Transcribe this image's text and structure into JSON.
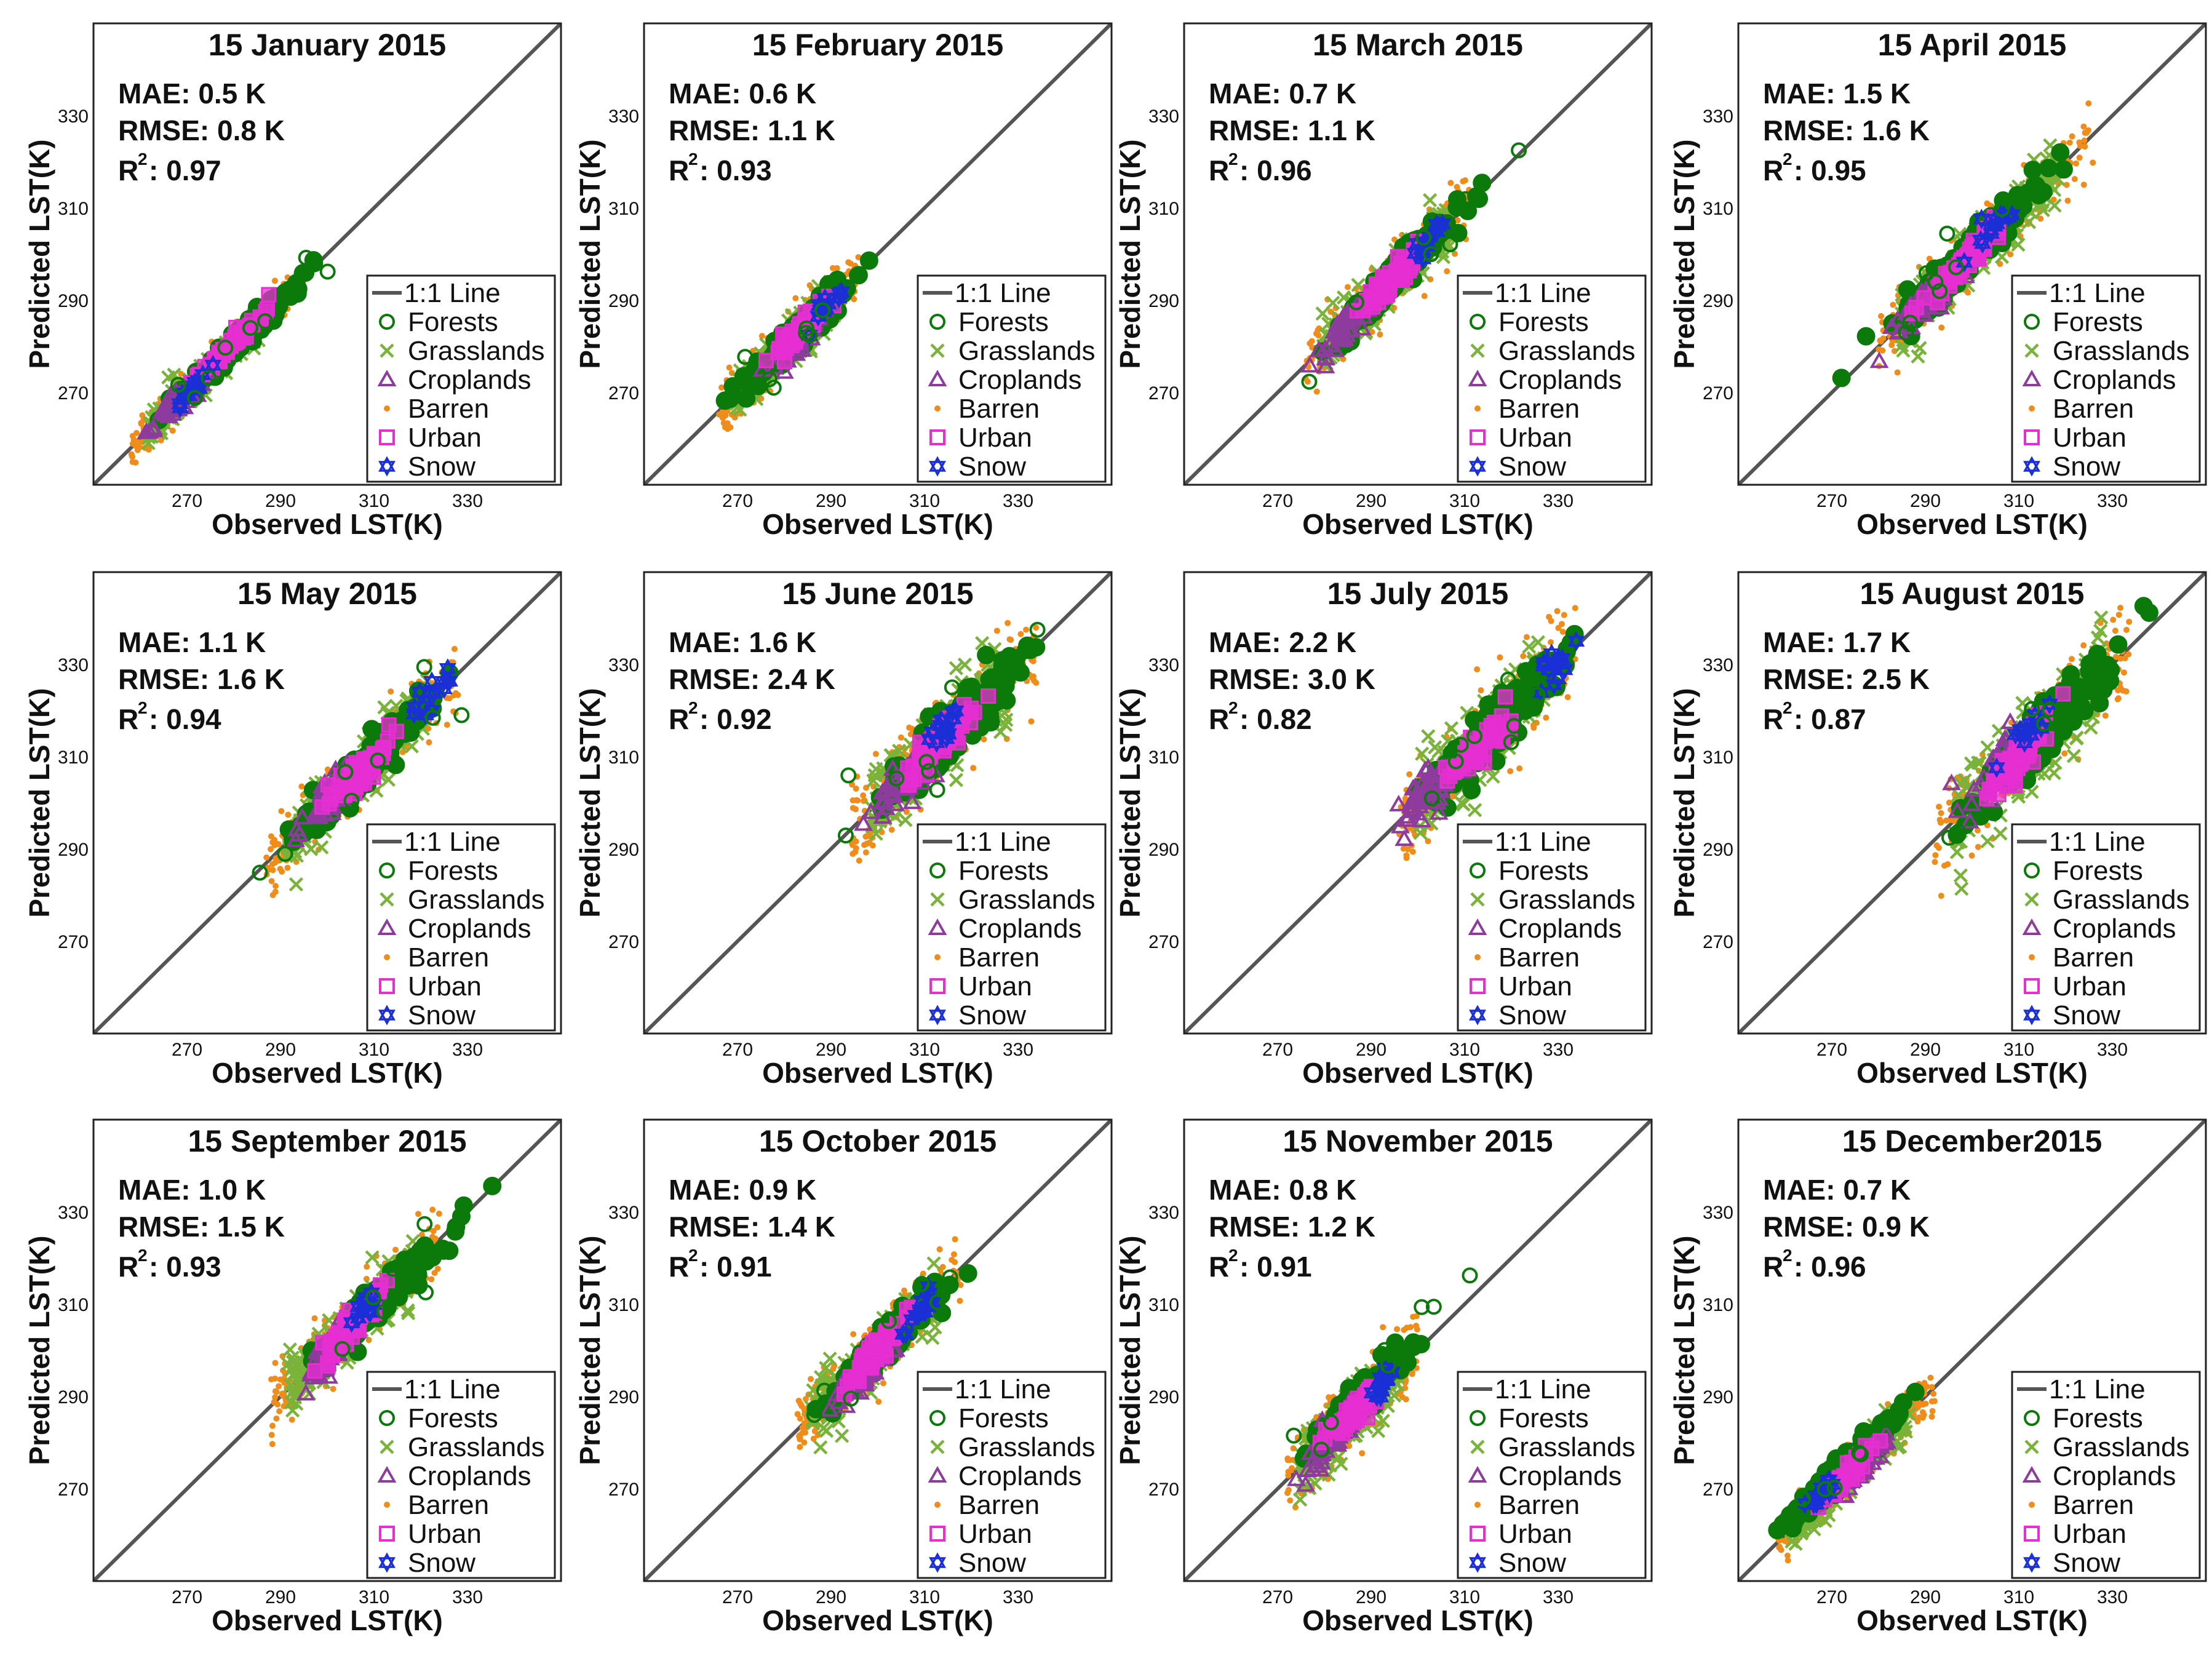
{
  "figure_note": "Monthly validation scatter plots of observed vs predicted land surface temperature",
  "colors": {
    "one_to_one_line": "#555555",
    "forests": "#0b7a0b",
    "grasslands": "#7ab33a",
    "croplands": "#8e3b9e",
    "barren": "#f08c1a",
    "urban": "#e52fd1",
    "snow": "#1a2fd6",
    "frame": "#222222"
  },
  "legend": {
    "items": [
      {
        "key": "line",
        "label": "1:1 Line",
        "icon": "line-icon"
      },
      {
        "key": "forests",
        "label": "Forests",
        "icon": "circle-marker-icon"
      },
      {
        "key": "grasslands",
        "label": "Grasslands",
        "icon": "x-marker-icon"
      },
      {
        "key": "croplands",
        "label": "Croplands",
        "icon": "triangle-marker-icon"
      },
      {
        "key": "barren",
        "label": "Barren",
        "icon": "dot-marker-icon"
      },
      {
        "key": "urban",
        "label": "Urban",
        "icon": "square-marker-icon"
      },
      {
        "key": "snow",
        "label": "Snow",
        "icon": "star-marker-icon"
      }
    ]
  },
  "chart_data": [
    {
      "type": "scatter",
      "title": "15 January 2015",
      "xlabel": "Observed LST(K)",
      "ylabel": "Predicted LST(K)",
      "xlim": [
        250,
        350
      ],
      "ylim": [
        250,
        350
      ],
      "xticks": [
        "270",
        "290",
        "310",
        "330"
      ],
      "yticks": [
        "270",
        "290",
        "310",
        "330"
      ],
      "stats": {
        "mae": "MAE: 0.5 K",
        "rmse": "RMSE: 0.8 K",
        "r2_prefix": "R",
        "r2_exp": "2",
        "r2_value": ": 0.97"
      },
      "cluster": {
        "x_range": [
          258,
          294
        ],
        "center": 278,
        "spread": 2.0
      },
      "series": [
        {
          "name": "Forests",
          "center": [
            281,
            281
          ]
        },
        {
          "name": "Grasslands",
          "center": [
            276,
            276
          ]
        },
        {
          "name": "Croplands",
          "center": [
            268,
            268
          ]
        },
        {
          "name": "Barren",
          "center": [
            287,
            288
          ]
        },
        {
          "name": "Urban",
          "center": [
            280,
            281
          ]
        },
        {
          "name": "Snow",
          "center": [
            272,
            272
          ]
        }
      ]
    },
    {
      "type": "scatter",
      "title": "15 February 2015",
      "xlabel": "Observed LST(K)",
      "ylabel": "Predicted LST(K)",
      "xlim": [
        250,
        350
      ],
      "ylim": [
        250,
        350
      ],
      "xticks": [
        "270",
        "290",
        "310",
        "330"
      ],
      "yticks": [
        "270",
        "290",
        "310",
        "330"
      ],
      "stats": {
        "mae": "MAE: 0.6 K",
        "rmse": "RMSE: 1.1 K",
        "r2_prefix": "R",
        "r2_exp": "2",
        "r2_value": ": 0.93"
      },
      "cluster": {
        "x_range": [
          266,
          296
        ],
        "center": 283,
        "spread": 2.6
      },
      "series": [
        {
          "name": "Forests",
          "center": [
            283,
            283
          ]
        },
        {
          "name": "Grasslands",
          "center": [
            278,
            278
          ]
        },
        {
          "name": "Croplands",
          "center": [
            283,
            281
          ]
        },
        {
          "name": "Barren",
          "center": [
            285,
            286
          ]
        },
        {
          "name": "Urban",
          "center": [
            284,
            284
          ]
        },
        {
          "name": "Snow",
          "center": [
            289,
            289
          ]
        }
      ]
    },
    {
      "type": "scatter",
      "title": "15 March 2015",
      "xlabel": "Observed LST(K)",
      "ylabel": "Predicted LST(K)",
      "xlim": [
        250,
        350
      ],
      "ylim": [
        250,
        350
      ],
      "xticks": [
        "270",
        "290",
        "310",
        "330"
      ],
      "yticks": [
        "270",
        "290",
        "310",
        "330"
      ],
      "stats": {
        "mae": "MAE: 0.7 K",
        "rmse": "RMSE: 1.1 K",
        "r2_prefix": "R",
        "r2_exp": "2",
        "r2_value": ": 0.96"
      },
      "cluster": {
        "x_range": [
          276,
          312
        ],
        "center": 294,
        "spread": 3.0
      },
      "series": [
        {
          "name": "Forests",
          "center": [
            295,
            295
          ]
        },
        {
          "name": "Grasslands",
          "center": [
            290,
            289
          ]
        },
        {
          "name": "Croplands",
          "center": [
            284,
            284
          ]
        },
        {
          "name": "Barren",
          "center": [
            304,
            305
          ]
        },
        {
          "name": "Urban",
          "center": [
            294,
            294
          ]
        },
        {
          "name": "Snow",
          "center": [
            301,
            302
          ]
        }
      ]
    },
    {
      "type": "scatter",
      "title": "15 April 2015",
      "xlabel": "Observed LST(K)",
      "ylabel": "Predicted LST(K)",
      "xlim": [
        250,
        350
      ],
      "ylim": [
        250,
        350
      ],
      "xticks": [
        "270",
        "290",
        "310",
        "330"
      ],
      "yticks": [
        "270",
        "290",
        "310",
        "330"
      ],
      "stats": {
        "mae": "MAE: 1.5 K",
        "rmse": "RMSE: 1.6 K",
        "r2_prefix": "R",
        "r2_exp": "2",
        "r2_value": ": 0.95"
      },
      "cluster": {
        "x_range": [
          280,
          326
        ],
        "center": 300,
        "spread": 3.4
      },
      "series": [
        {
          "name": "Forests",
          "center": [
            299,
            300
          ]
        },
        {
          "name": "Grasslands",
          "center": [
            296,
            294
          ]
        },
        {
          "name": "Croplands",
          "center": [
            292,
            292
          ]
        },
        {
          "name": "Barren",
          "center": [
            316,
            317
          ]
        },
        {
          "name": "Urban",
          "center": [
            298,
            298
          ]
        },
        {
          "name": "Snow",
          "center": [
            305,
            306
          ]
        }
      ]
    },
    {
      "type": "scatter",
      "title": "15 May 2015",
      "xlabel": "Observed LST(K)",
      "ylabel": "Predicted LST(K)",
      "xlim": [
        250,
        350
      ],
      "ylim": [
        250,
        350
      ],
      "xticks": [
        "270",
        "290",
        "310",
        "330"
      ],
      "yticks": [
        "270",
        "290",
        "310",
        "330"
      ],
      "stats": {
        "mae": "MAE: 1.1 K",
        "rmse": "RMSE: 1.6 K",
        "r2_prefix": "R",
        "r2_exp": "2",
        "r2_value": ": 0.94"
      },
      "cluster": {
        "x_range": [
          287,
          328
        ],
        "center": 306,
        "spread": 3.4
      },
      "series": [
        {
          "name": "Forests",
          "center": [
            307,
            307
          ]
        },
        {
          "name": "Grasslands",
          "center": [
            302,
            301
          ]
        },
        {
          "name": "Croplands",
          "center": [
            300,
            300
          ]
        },
        {
          "name": "Barren",
          "center": [
            318,
            319
          ]
        },
        {
          "name": "Urban",
          "center": [
            306,
            306
          ]
        },
        {
          "name": "Snow",
          "center": [
            322,
            323
          ]
        }
      ]
    },
    {
      "type": "scatter",
      "title": "15 June 2015",
      "xlabel": "Observed LST(K)",
      "ylabel": "Predicted LST(K)",
      "xlim": [
        250,
        350
      ],
      "ylim": [
        250,
        350
      ],
      "xticks": [
        "270",
        "290",
        "310",
        "330"
      ],
      "yticks": [
        "270",
        "290",
        "310",
        "330"
      ],
      "stats": {
        "mae": "MAE: 1.6 K",
        "rmse": "RMSE: 2.4 K",
        "r2_prefix": "R",
        "r2_exp": "2",
        "r2_value": ": 0.92"
      },
      "cluster": {
        "x_range": [
          294,
          334
        ],
        "center": 314,
        "spread": 4.4
      },
      "series": [
        {
          "name": "Forests",
          "center": [
            318,
            318
          ]
        },
        {
          "name": "Grasslands",
          "center": [
            312,
            310
          ]
        },
        {
          "name": "Croplands",
          "center": [
            306,
            305
          ]
        },
        {
          "name": "Barren",
          "center": [
            326,
            327
          ]
        },
        {
          "name": "Urban",
          "center": [
            313,
            313
          ]
        },
        {
          "name": "Snow",
          "center": [
            314,
            316
          ]
        }
      ]
    },
    {
      "type": "scatter",
      "title": "15 July 2015",
      "xlabel": "Observed LST(K)",
      "ylabel": "Predicted LST(K)",
      "xlim": [
        250,
        350
      ],
      "ylim": [
        250,
        350
      ],
      "xticks": [
        "270",
        "290",
        "310",
        "330"
      ],
      "yticks": [
        "270",
        "290",
        "310",
        "330"
      ],
      "stats": {
        "mae": "MAE: 2.2 K",
        "rmse": "RMSE: 3.0 K",
        "r2_prefix": "R",
        "r2_exp": "2",
        "r2_value": ": 0.82"
      },
      "cluster": {
        "x_range": [
          296,
          334
        ],
        "center": 313,
        "spread": 4.6
      },
      "series": [
        {
          "name": "Forests",
          "center": [
            316,
            316
          ]
        },
        {
          "name": "Grasslands",
          "center": [
            310,
            309
          ]
        },
        {
          "name": "Croplands",
          "center": [
            302,
            302
          ]
        },
        {
          "name": "Barren",
          "center": [
            326,
            327
          ]
        },
        {
          "name": "Urban",
          "center": [
            313,
            312
          ]
        },
        {
          "name": "Snow",
          "center": [
            329,
            329
          ]
        }
      ]
    },
    {
      "type": "scatter",
      "title": "15 August 2015",
      "xlabel": "Observed LST(K)",
      "ylabel": "Predicted LST(K)",
      "xlim": [
        250,
        350
      ],
      "ylim": [
        250,
        350
      ],
      "xticks": [
        "270",
        "290",
        "310",
        "330"
      ],
      "yticks": [
        "270",
        "290",
        "310",
        "330"
      ],
      "stats": {
        "mae": "MAE: 1.7 K",
        "rmse": "RMSE: 2.5 K",
        "r2_prefix": "R",
        "r2_exp": "2",
        "r2_value": ": 0.87"
      },
      "cluster": {
        "x_range": [
          292,
          334
        ],
        "center": 312,
        "spread": 4.8
      },
      "series": [
        {
          "name": "Forests",
          "center": [
            315,
            315
          ]
        },
        {
          "name": "Grasslands",
          "center": [
            307,
            305
          ]
        },
        {
          "name": "Croplands",
          "center": [
            306,
            308
          ]
        },
        {
          "name": "Barren",
          "center": [
            322,
            324
          ]
        },
        {
          "name": "Urban",
          "center": [
            309,
            309
          ]
        },
        {
          "name": "Snow",
          "center": [
            311,
            314
          ]
        }
      ]
    },
    {
      "type": "scatter",
      "title": "15 September 2015",
      "xlabel": "Observed LST(K)",
      "ylabel": "Predicted LST(K)",
      "xlim": [
        250,
        350
      ],
      "ylim": [
        250,
        350
      ],
      "xticks": [
        "270",
        "290",
        "310",
        "330"
      ],
      "yticks": [
        "270",
        "290",
        "310",
        "330"
      ],
      "stats": {
        "mae": "MAE: 1.0 K",
        "rmse": "RMSE: 1.5 K",
        "r2_prefix": "R",
        "r2_exp": "2",
        "r2_value": ": 0.93"
      },
      "cluster": {
        "x_range": [
          288,
          324
        ],
        "center": 306,
        "spread": 3.2
      },
      "series": [
        {
          "name": "Forests",
          "center": [
            312,
            312
          ]
        },
        {
          "name": "Grasslands",
          "center": [
            302,
            301
          ]
        },
        {
          "name": "Croplands",
          "center": [
            300,
            299
          ]
        },
        {
          "name": "Barren",
          "center": [
            318,
            319
          ]
        },
        {
          "name": "Urban",
          "center": [
            305,
            305
          ]
        },
        {
          "name": "Snow",
          "center": [
            308,
            309
          ]
        }
      ]
    },
    {
      "type": "scatter",
      "title": "15 October 2015",
      "xlabel": "Observed LST(K)",
      "ylabel": "Predicted LST(K)",
      "xlim": [
        250,
        350
      ],
      "ylim": [
        250,
        350
      ],
      "xticks": [
        "270",
        "290",
        "310",
        "330"
      ],
      "yticks": [
        "270",
        "290",
        "310",
        "330"
      ],
      "stats": {
        "mae": "MAE: 0.9 K",
        "rmse": "RMSE: 1.4 K",
        "r2_prefix": "R",
        "r2_exp": "2",
        "r2_value": ": 0.91"
      },
      "cluster": {
        "x_range": [
          282,
          318
        ],
        "center": 302,
        "spread": 3.2
      },
      "series": [
        {
          "name": "Forests",
          "center": [
            302,
            302
          ]
        },
        {
          "name": "Grasslands",
          "center": [
            296,
            296
          ]
        },
        {
          "name": "Croplands",
          "center": [
            296,
            294
          ]
        },
        {
          "name": "Barren",
          "center": [
            312,
            313
          ]
        },
        {
          "name": "Urban",
          "center": [
            300,
            300
          ]
        },
        {
          "name": "Snow",
          "center": [
            309,
            309
          ]
        }
      ]
    },
    {
      "type": "scatter",
      "title": "15 November 2015",
      "xlabel": "Observed LST(K)",
      "ylabel": "Predicted LST(K)",
      "xlim": [
        250,
        350
      ],
      "ylim": [
        250,
        350
      ],
      "xticks": [
        "270",
        "290",
        "310",
        "330"
      ],
      "yticks": [
        "270",
        "290",
        "310",
        "330"
      ],
      "stats": {
        "mae": "MAE: 0.8 K",
        "rmse": "RMSE: 1.2 K",
        "r2_prefix": "R",
        "r2_exp": "2",
        "r2_value": ": 0.91"
      },
      "cluster": {
        "x_range": [
          272,
          300
        ],
        "center": 286,
        "spread": 3.4
      },
      "series": [
        {
          "name": "Forests",
          "center": [
            288,
            290
          ]
        },
        {
          "name": "Grasslands",
          "center": [
            282,
            281
          ]
        },
        {
          "name": "Croplands",
          "center": [
            280,
            279
          ]
        },
        {
          "name": "Barren",
          "center": [
            296,
            296
          ]
        },
        {
          "name": "Urban",
          "center": [
            286,
            286
          ]
        },
        {
          "name": "Snow",
          "center": [
            292,
            292
          ]
        }
      ]
    },
    {
      "type": "scatter",
      "title": "15 December2015",
      "xlabel": "Observed LST(K)",
      "ylabel": "Predicted LST(K)",
      "xlim": [
        250,
        350
      ],
      "ylim": [
        250,
        350
      ],
      "xticks": [
        "270",
        "290",
        "310",
        "330"
      ],
      "yticks": [
        "270",
        "290",
        "310",
        "330"
      ],
      "stats": {
        "mae": "MAE: 0.7 K",
        "rmse": "RMSE: 0.9 K",
        "r2_prefix": "R",
        "r2_exp": "2",
        "r2_value": ": 0.96"
      },
      "cluster": {
        "x_range": [
          258,
          292
        ],
        "center": 274,
        "spread": 2.4
      },
      "series": [
        {
          "name": "Forests",
          "center": [
            272,
            274
          ]
        },
        {
          "name": "Grasslands",
          "center": [
            268,
            268
          ]
        },
        {
          "name": "Croplands",
          "center": [
            276,
            275
          ]
        },
        {
          "name": "Barren",
          "center": [
            284,
            285
          ]
        },
        {
          "name": "Urban",
          "center": [
            273,
            273
          ]
        },
        {
          "name": "Snow",
          "center": [
            268,
            269
          ]
        }
      ]
    }
  ]
}
